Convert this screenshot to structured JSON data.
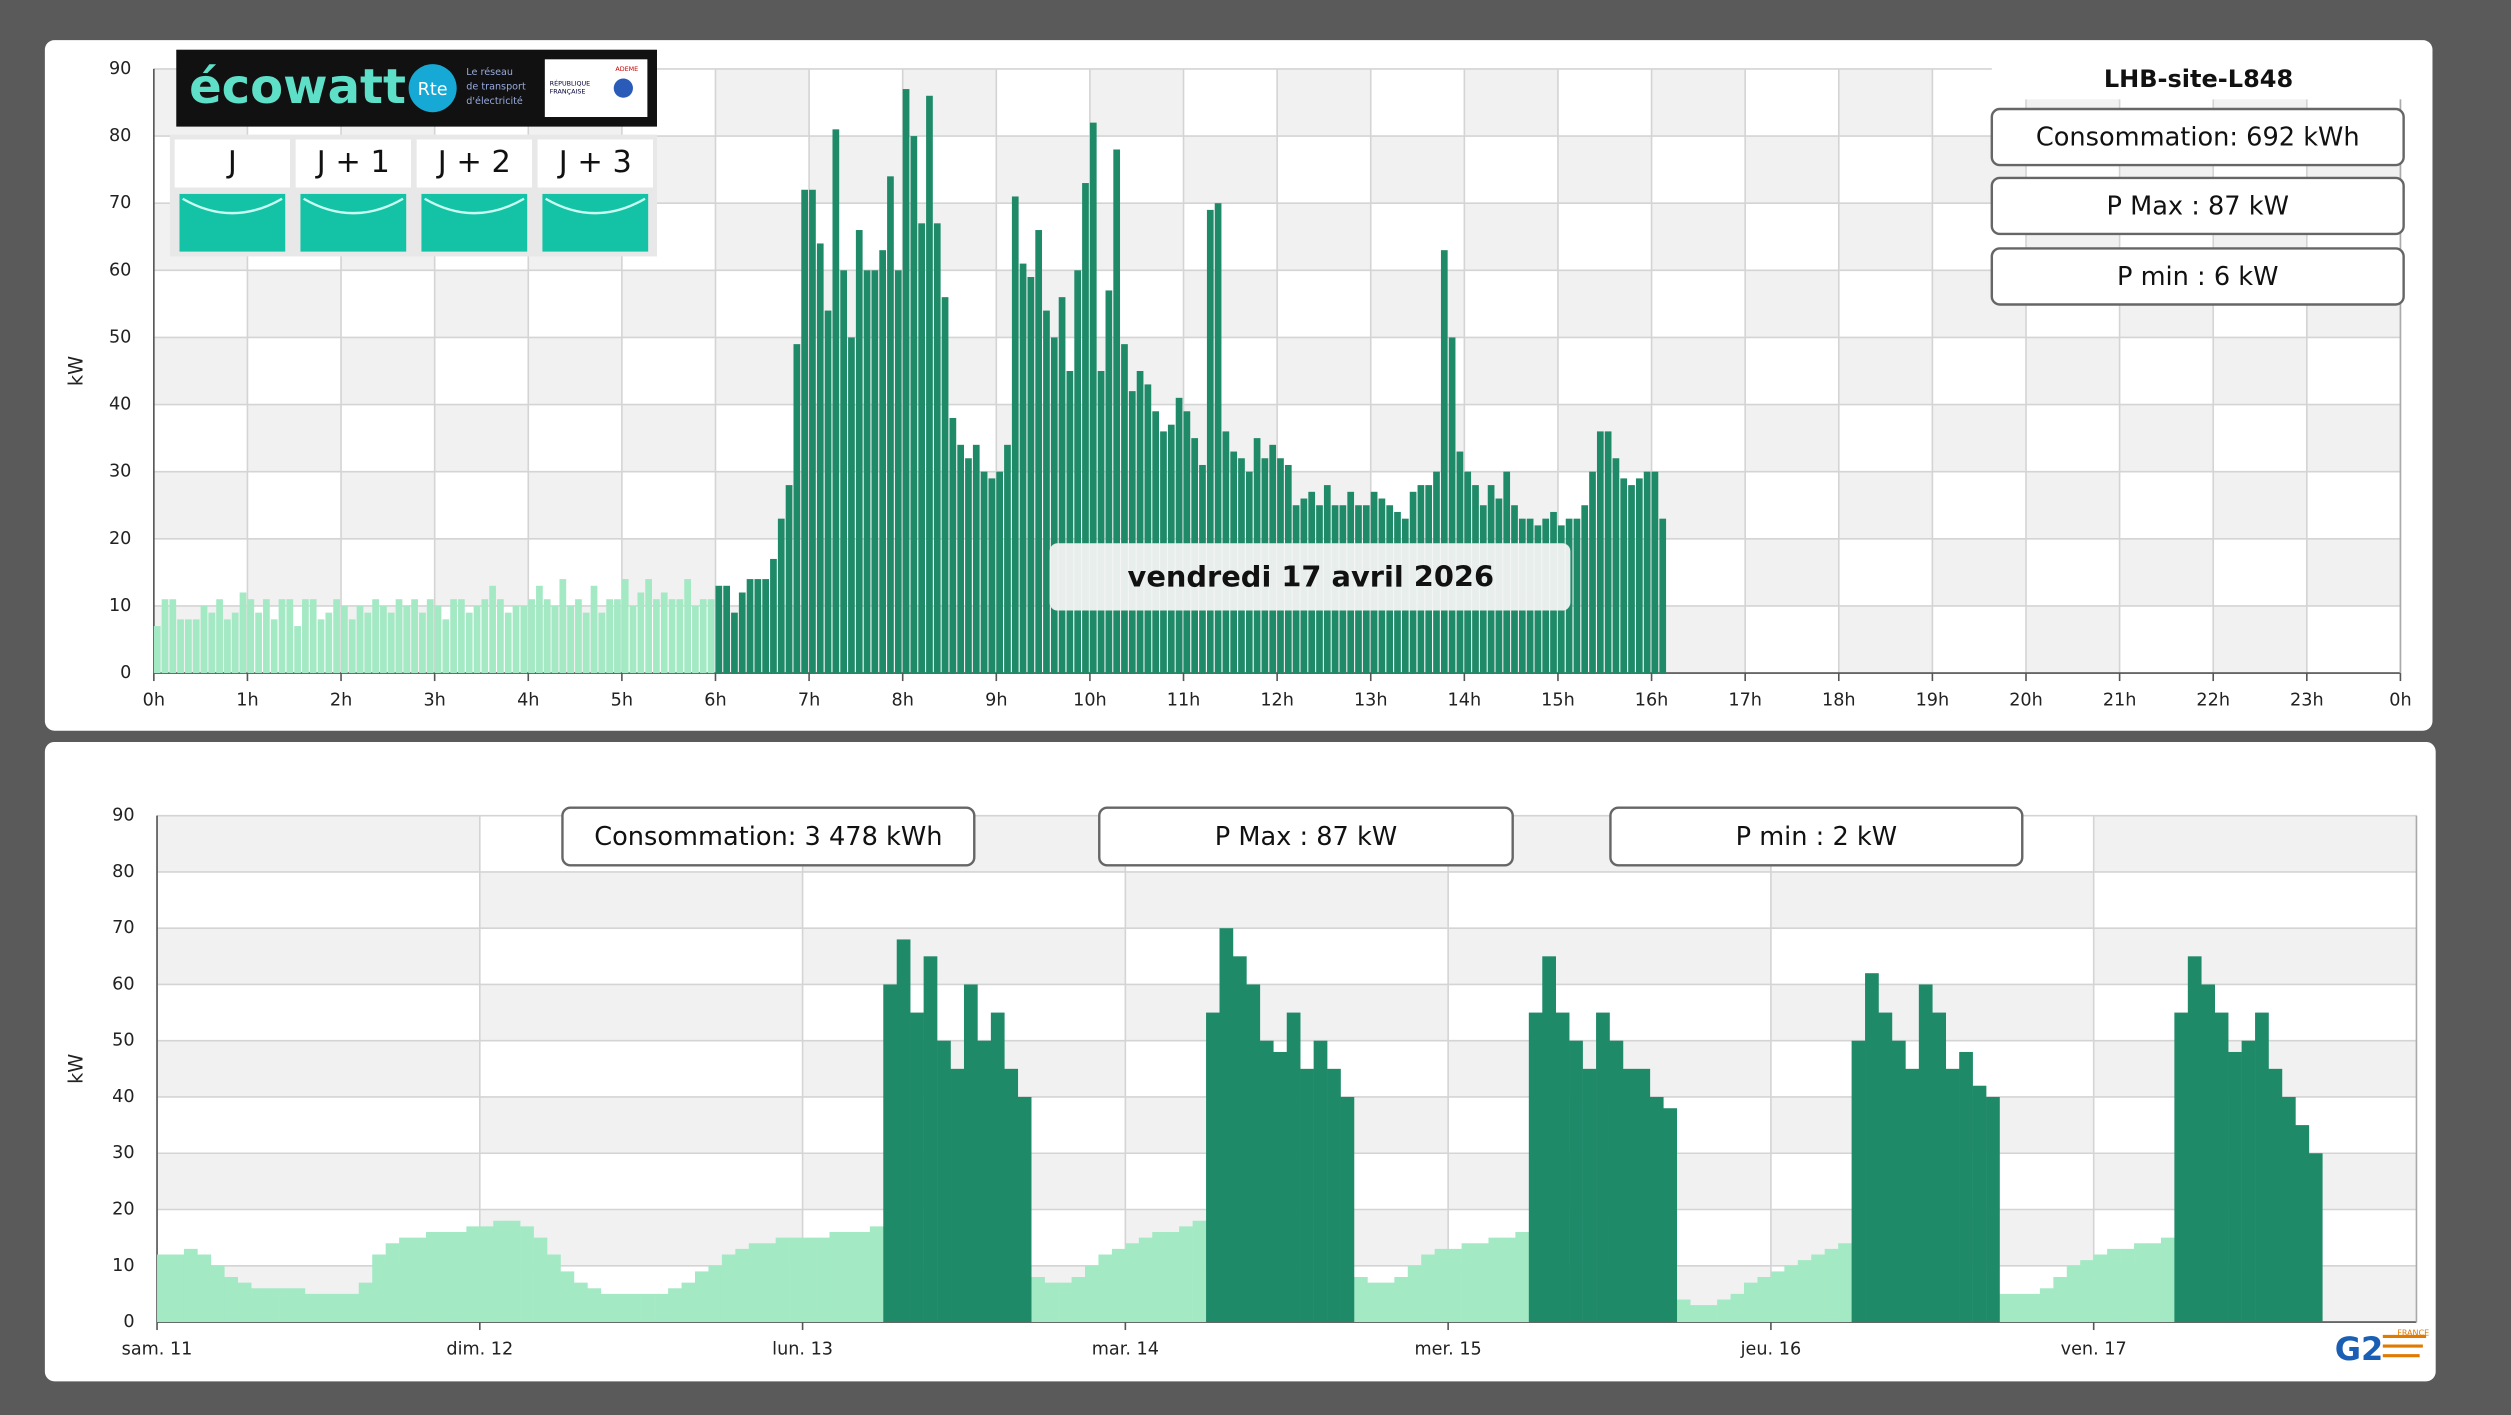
{
  "chart_data": [
    {
      "type": "bar",
      "title": "LHB-site-L848",
      "annotations": [
        "Consommation: 692 kWh",
        "P Max :  87 kW",
        "P min : 6 kW"
      ],
      "date_label": "vendredi 17 avril 2026",
      "y_label": "kW",
      "xlim": [
        0,
        1440
      ],
      "xticks": [
        {
          "value": 0,
          "label": "0h"
        },
        {
          "value": 60,
          "label": "1h"
        },
        {
          "value": 120,
          "label": "2h"
        },
        {
          "value": 180,
          "label": "3h"
        },
        {
          "value": 240,
          "label": "4h"
        },
        {
          "value": 300,
          "label": "5h"
        },
        {
          "value": 360,
          "label": "6h"
        },
        {
          "value": 420,
          "label": "7h"
        },
        {
          "value": 480,
          "label": "8h"
        },
        {
          "value": 540,
          "label": "9h"
        },
        {
          "value": 600,
          "label": "10h"
        },
        {
          "value": 660,
          "label": "11h"
        },
        {
          "value": 720,
          "label": "12h"
        },
        {
          "value": 780,
          "label": "13h"
        },
        {
          "value": 840,
          "label": "14h"
        },
        {
          "value": 900,
          "label": "15h"
        },
        {
          "value": 960,
          "label": "16h"
        },
        {
          "value": 1020,
          "label": "17h"
        },
        {
          "value": 1080,
          "label": "18h"
        },
        {
          "value": 1140,
          "label": "19h"
        },
        {
          "value": 1200,
          "label": "20h"
        },
        {
          "value": 1260,
          "label": "21h"
        },
        {
          "value": 1320,
          "label": "22h"
        },
        {
          "value": 1380,
          "label": "23h"
        },
        {
          "value": 1440,
          "label": "0h"
        }
      ],
      "ylim": [
        0,
        90
      ],
      "yticks": [
        0,
        10,
        20,
        30,
        40,
        50,
        60,
        70,
        80,
        90
      ],
      "grid": true,
      "series": [
        {
          "color": "#a3e9c4",
          "x": [
            0,
            5,
            10,
            15,
            20,
            25,
            30,
            35,
            40,
            45,
            50,
            55,
            60,
            65,
            70,
            75,
            80,
            85,
            90,
            95,
            100,
            105,
            110,
            115,
            120,
            125,
            130,
            135,
            140,
            145,
            150,
            155,
            160,
            165,
            170,
            175,
            180,
            185,
            190,
            195,
            200,
            205,
            210,
            215,
            220,
            225,
            230,
            235,
            240,
            245,
            250,
            255,
            260,
            265,
            270,
            275,
            280,
            285,
            290,
            295,
            300,
            305,
            310,
            315,
            320,
            325,
            330,
            335,
            340,
            345,
            350,
            355
          ],
          "values": [
            7,
            11,
            11,
            8,
            8,
            8,
            10,
            9,
            11,
            8,
            9,
            12,
            11,
            9,
            11,
            8,
            11,
            11,
            7,
            11,
            11,
            8,
            9,
            11,
            10,
            8,
            10,
            9,
            11,
            10,
            9,
            11,
            10,
            11,
            9,
            11,
            10,
            8,
            11,
            11,
            9,
            10,
            11,
            13,
            11,
            9,
            10,
            10,
            11,
            13,
            11,
            10,
            14,
            10,
            11,
            9,
            13,
            9,
            11,
            11,
            14,
            10,
            12,
            14,
            11,
            12,
            11,
            11,
            14,
            10,
            11,
            11
          ]
        },
        {
          "color": "#1f8a68",
          "x": [
            360,
            365,
            370,
            375,
            380,
            385,
            390,
            395,
            400,
            405,
            410,
            415,
            420,
            425,
            430,
            435,
            440,
            445,
            450,
            455,
            460,
            465,
            470,
            475,
            480,
            485,
            490,
            495,
            500,
            505,
            510,
            515,
            520,
            525,
            530,
            535,
            540,
            545,
            550,
            555,
            560,
            565,
            570,
            575,
            580,
            585,
            590,
            595,
            600,
            605,
            610,
            615,
            620,
            625,
            630,
            635,
            640,
            645,
            650,
            655,
            660,
            665,
            670,
            675,
            680,
            685,
            690,
            695,
            700,
            705,
            710,
            715,
            720,
            725,
            730,
            735,
            740,
            745,
            750,
            755,
            760,
            765,
            770,
            775,
            780,
            785,
            790,
            795,
            800,
            805,
            810,
            815,
            820,
            825,
            830,
            835,
            840,
            845,
            850,
            855,
            860,
            865,
            870,
            875,
            880,
            885,
            890,
            895,
            900,
            905,
            910,
            915,
            920,
            925,
            930,
            935,
            940,
            945,
            950,
            955,
            960,
            965
          ],
          "values": [
            13,
            13,
            9,
            12,
            14,
            14,
            14,
            17,
            23,
            28,
            49,
            72,
            72,
            64,
            54,
            81,
            60,
            50,
            66,
            60,
            60,
            63,
            74,
            60,
            87,
            80,
            67,
            86,
            67,
            56,
            38,
            34,
            32,
            34,
            30,
            29,
            30,
            34,
            71,
            61,
            59,
            66,
            54,
            50,
            56,
            45,
            60,
            73,
            82,
            45,
            57,
            78,
            49,
            42,
            45,
            43,
            39,
            36,
            37,
            41,
            39,
            35,
            31,
            69,
            70,
            36,
            33,
            32,
            30,
            35,
            32,
            34,
            32,
            31,
            25,
            26,
            27,
            25,
            28,
            25,
            25,
            27,
            25,
            25,
            27,
            26,
            25,
            24,
            23,
            27,
            28,
            28,
            30,
            63,
            50,
            33,
            30,
            28,
            25,
            28,
            26,
            30,
            25,
            23,
            23,
            22,
            23,
            24,
            22,
            23,
            23,
            25,
            30,
            36,
            36,
            32,
            29,
            28,
            29,
            30,
            30,
            23
          ]
        }
      ]
    },
    {
      "type": "bar",
      "annotations": [
        "Consommation: 3 478 kWh",
        "P Max :  87 kW",
        "P min : 2 kW"
      ],
      "y_label": "kW",
      "xlim": [
        0,
        168
      ],
      "xticks": [
        {
          "value": 0,
          "label": "sam. 11"
        },
        {
          "value": 24,
          "label": "dim. 12"
        },
        {
          "value": 48,
          "label": "lun. 13"
        },
        {
          "value": 72,
          "label": "mar. 14"
        },
        {
          "value": 96,
          "label": "mer. 15"
        },
        {
          "value": 120,
          "label": "jeu. 16"
        },
        {
          "value": 144,
          "label": "ven. 17"
        }
      ],
      "ylim": [
        0,
        90
      ],
      "yticks": [
        0,
        10,
        20,
        30,
        40,
        50,
        60,
        70,
        80,
        90
      ],
      "grid": true,
      "series": [
        {
          "color": "#a3e9c4",
          "x": [
            0,
            1,
            2,
            3,
            4,
            5,
            6,
            7,
            8,
            9,
            10,
            11,
            12,
            13,
            14,
            15,
            16,
            17,
            18,
            19,
            20,
            21,
            22,
            23,
            24,
            25,
            26,
            27,
            28,
            29,
            30,
            31,
            32,
            33,
            34,
            35,
            36,
            37,
            38,
            39,
            40,
            41,
            42,
            43,
            44,
            45,
            46,
            47,
            48,
            49,
            50,
            51,
            52,
            53,
            65,
            66,
            67,
            68,
            69,
            70,
            71,
            72,
            73,
            74,
            75,
            76,
            77,
            89,
            90,
            91,
            92,
            93,
            94,
            95,
            96,
            97,
            98,
            99,
            100,
            101,
            113,
            114,
            115,
            116,
            117,
            118,
            119,
            120,
            121,
            122,
            123,
            124,
            125,
            137,
            138,
            139,
            140,
            141,
            142,
            143,
            144,
            145,
            146,
            147,
            148,
            149
          ],
          "values": [
            12,
            12,
            13,
            12,
            10,
            8,
            7,
            6,
            6,
            6,
            6,
            5,
            5,
            5,
            5,
            7,
            12,
            14,
            15,
            15,
            16,
            16,
            16,
            17,
            17,
            18,
            18,
            17,
            15,
            12,
            9,
            7,
            6,
            5,
            5,
            5,
            5,
            5,
            6,
            7,
            9,
            10,
            12,
            13,
            14,
            14,
            15,
            15,
            15,
            15,
            16,
            16,
            16,
            17,
            8,
            7,
            7,
            8,
            10,
            12,
            13,
            14,
            15,
            16,
            16,
            17,
            18,
            8,
            7,
            7,
            8,
            10,
            12,
            13,
            13,
            14,
            14,
            15,
            15,
            16,
            4,
            3,
            3,
            4,
            5,
            7,
            8,
            9,
            10,
            11,
            12,
            13,
            14,
            5,
            5,
            5,
            6,
            8,
            10,
            11,
            12,
            13,
            13,
            14,
            14,
            15
          ]
        },
        {
          "color": "#1f8a68",
          "x": [
            54,
            55,
            56,
            57,
            58,
            59,
            60,
            61,
            62,
            63,
            64,
            78,
            79,
            80,
            81,
            82,
            83,
            84,
            85,
            86,
            87,
            88,
            102,
            103,
            104,
            105,
            106,
            107,
            108,
            109,
            110,
            111,
            112,
            126,
            127,
            128,
            129,
            130,
            131,
            132,
            133,
            134,
            135,
            136,
            150,
            151,
            152,
            153,
            154,
            155,
            156,
            157,
            158,
            159,
            160
          ],
          "values": [
            60,
            68,
            55,
            65,
            50,
            45,
            60,
            50,
            55,
            45,
            40,
            55,
            70,
            65,
            60,
            50,
            48,
            55,
            45,
            50,
            45,
            40,
            55,
            65,
            55,
            50,
            45,
            55,
            50,
            45,
            45,
            40,
            38,
            50,
            62,
            55,
            50,
            45,
            60,
            55,
            45,
            48,
            42,
            40,
            55,
            65,
            60,
            55,
            48,
            50,
            55,
            45,
            40,
            35,
            30
          ]
        }
      ]
    }
  ],
  "ecowatt": {
    "brand": "écowatt",
    "rte": "Rte",
    "rte_tagline": [
      "Le réseau",
      "de transport",
      "d'électricité"
    ],
    "republic": [
      "RÉPUBLIQUE",
      "FRANÇAISE"
    ],
    "ademe": "ADEME",
    "days": [
      "J",
      "J + 1",
      "J + 2",
      "J + 3"
    ]
  },
  "logo": {
    "text": "G2",
    "country": "FRANCE"
  }
}
